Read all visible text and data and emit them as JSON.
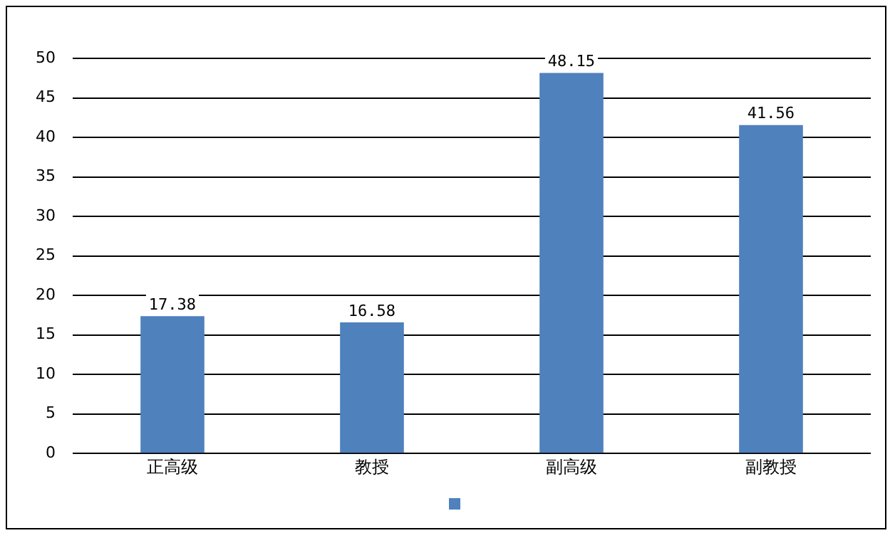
{
  "chart_data": {
    "type": "bar",
    "categories": [
      "正高级",
      "教授",
      "副高级",
      "副教授"
    ],
    "series": [
      {
        "color": "#4f81bd",
        "values": [
          17.38,
          16.58,
          48.15,
          41.56
        ]
      }
    ],
    "value_labels": [
      "17.38",
      "16.58",
      "48.15",
      "41.56"
    ],
    "ylim": [
      0,
      50
    ],
    "yticks": [
      0,
      5,
      10,
      15,
      20,
      25,
      30,
      35,
      40,
      45,
      50
    ],
    "grid": "y"
  }
}
